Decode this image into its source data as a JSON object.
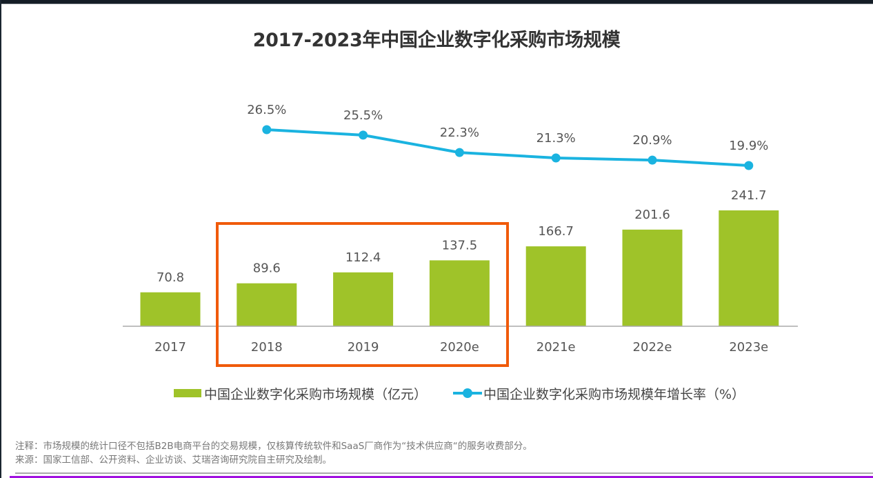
{
  "chart_data": {
    "type": "bar+line",
    "title": "2017-2023年中国企业数字化采购市场规模",
    "categories": [
      "2017",
      "2018",
      "2019",
      "2020e",
      "2021e",
      "2022e",
      "2023e"
    ],
    "series": [
      {
        "name": "中国企业数字化采购市场规模（亿元）",
        "type": "bar",
        "color": "#9fc329",
        "values": [
          70.8,
          89.6,
          112.4,
          137.5,
          166.7,
          201.6,
          241.7
        ],
        "labels": [
          "70.8",
          "89.6",
          "112.4",
          "137.5",
          "166.7",
          "201.6",
          "241.7"
        ]
      },
      {
        "name": "中国企业数字化采购市场规模年增长率（%）",
        "type": "line",
        "color": "#1ab3e0",
        "values": [
          null,
          26.5,
          25.5,
          22.3,
          21.3,
          20.9,
          19.9
        ],
        "labels": [
          "",
          "26.5%",
          "25.5%",
          "22.3%",
          "21.3%",
          "20.9%",
          "19.9%"
        ]
      }
    ],
    "xlabel": "",
    "ylabel": "",
    "grid": false,
    "legend_position": "bottom",
    "highlight": {
      "categories": [
        "2018",
        "2019",
        "2020e"
      ],
      "color": "#f05a0a"
    }
  },
  "legend": {
    "bar_label": "中国企业数字化采购市场规模（亿元）",
    "line_label": "中国企业数字化采购市场规模年增长率（%）"
  },
  "notes": {
    "note": "注释：市场规模的统计口径不包括B2B电商平台的交易规模，仅核算传统软件和SaaS厂商作为“技术供应商“的服务收费部分。",
    "source": "来源：国家工信部、公开资料、企业访谈、艾瑞咨询研究院自主研究及绘制。"
  }
}
